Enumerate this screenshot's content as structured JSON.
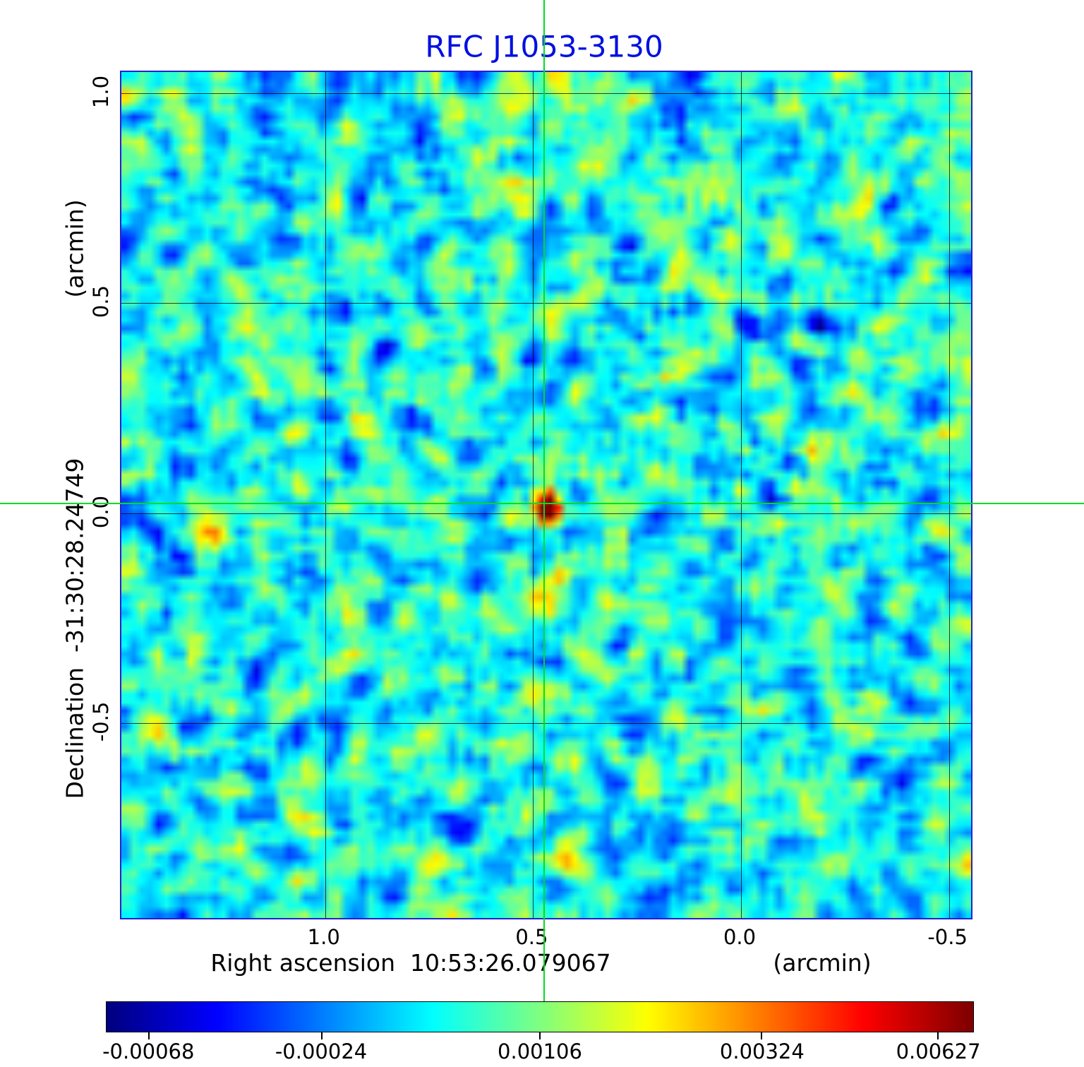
{
  "title": "RFC J1053-3130",
  "axes": {
    "x_label": "Right ascension  10:53:26.079067",
    "x_unit": "(arcmin)",
    "y_label": "Declination  -31:30:28.24749",
    "y_unit": "(arcmin)",
    "x_ticks": [
      "1.0",
      "0.5",
      "0.0",
      "-0.5"
    ],
    "y_ticks": [
      "1.0",
      "0.5",
      "0.0",
      "-0.5"
    ]
  },
  "colorbar": {
    "tick_labels": [
      "-0.00068",
      "-0.00024",
      "0.00106",
      "0.00324",
      "0.00627"
    ],
    "tick_positions": [
      0.049,
      0.248,
      0.5,
      0.756,
      0.959
    ]
  },
  "chart_data": {
    "type": "heatmap",
    "title": "RFC J1053-3130",
    "xlabel": "Right ascension 10:53:26.079067 (arcmin)",
    "ylabel": "Declination -31:30:28.24749 (arcmin)",
    "xlim": [
      1.49,
      -0.56
    ],
    "ylim": [
      1.05,
      -0.97
    ],
    "x_ticks": [
      1.0,
      0.5,
      0.0,
      -0.5
    ],
    "y_ticks": [
      1.0,
      0.5,
      0.0,
      -0.5
    ],
    "grid": true,
    "colormap": "jet",
    "value_min": -0.00068,
    "value_max": 0.00627,
    "colorbar_ticks": [
      -0.00068,
      -0.00024,
      0.00106,
      0.00324,
      0.00627
    ],
    "source": {
      "x": 0.47,
      "y": 0.02,
      "peak": 0.00627
    },
    "crosshair": {
      "x": 0.47,
      "y": 0.02
    },
    "background_noise": {
      "typical_level": 0.0004,
      "appearance": "cyan-blue correlated noise"
    }
  },
  "colors": {
    "title_text": "#0010e0",
    "frame": "#2222cc",
    "crosshair": "#00dd22",
    "gridline": "#000000",
    "colorbar_border": "#000000"
  }
}
